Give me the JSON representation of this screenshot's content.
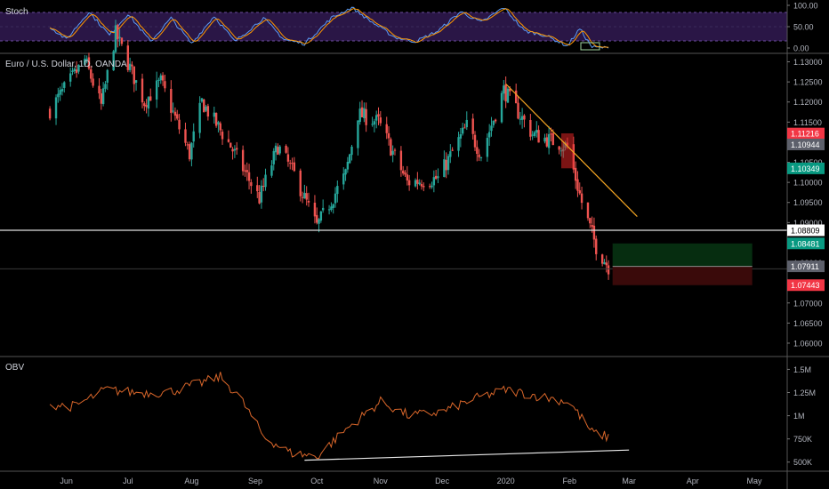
{
  "colors": {
    "background": "#000000",
    "up": "#26a69a",
    "down": "#ef5350",
    "stoch_band": "#2a1646",
    "stoch_k": "#5b9cf6",
    "stoch_d": "#ff9800",
    "obv_line": "#d9662a",
    "trendline": "#f5a623",
    "support_line": "#e0e0e0",
    "grid_text": "#b2b5be",
    "profit_zone": "#062d10",
    "loss_zone": "#3a0a0a"
  },
  "stoch": {
    "label": "Stoch",
    "ticks": [
      "100.00",
      "50.00",
      "0.00"
    ]
  },
  "price": {
    "title": "Euro / U.S. Dollar, 1D, OANDA",
    "ticks": [
      "1.13000",
      "1.12500",
      "1.12000",
      "1.11500",
      "1.11000",
      "1.10500",
      "1.10000",
      "1.09500",
      "1.09000",
      "1.08500",
      "1.08000",
      "1.07500",
      "1.07000",
      "1.06500",
      "1.06000"
    ],
    "tags": [
      {
        "value": "1.11216",
        "color": "#f23645",
        "text_color": "#ffffff"
      },
      {
        "value": "1.10944",
        "color": "#5d606b",
        "text_color": "#ffffff"
      },
      {
        "value": "1.10349",
        "color": "#089981",
        "text_color": "#ffffff"
      },
      {
        "value": "1.08809",
        "color": "#ffffff",
        "text_color": "#000000"
      },
      {
        "value": "1.08481",
        "color": "#089981",
        "text_color": "#ffffff"
      },
      {
        "value": "1.07911",
        "color": "#5d606b",
        "text_color": "#ffffff"
      },
      {
        "value": "1.07443",
        "color": "#f23645",
        "text_color": "#ffffff"
      }
    ]
  },
  "obv": {
    "label": "OBV",
    "ticks": [
      "1.5M",
      "1.25M",
      "1M",
      "750K",
      "500K"
    ]
  },
  "time_axis": {
    "labels": [
      "Jun",
      "Jul",
      "Aug",
      "Sep",
      "Oct",
      "Nov",
      "Dec",
      "2020",
      "Feb",
      "Mar",
      "Apr",
      "May"
    ]
  },
  "chart_data": {
    "type": "candlestick",
    "title": "Euro / U.S. Dollar, 1D, OANDA",
    "x_range": [
      "2019-05",
      "2020-05"
    ],
    "y_range": [
      1.058,
      1.131
    ],
    "close_anchors": [
      {
        "date": "2019-05-24",
        "close": 1.118
      },
      {
        "date": "2019-06-10",
        "close": 1.1305
      },
      {
        "date": "2019-06-18",
        "close": 1.119
      },
      {
        "date": "2019-06-25",
        "close": 1.137
      },
      {
        "date": "2019-07-09",
        "close": 1.12
      },
      {
        "date": "2019-07-17",
        "close": 1.125
      },
      {
        "date": "2019-07-31",
        "close": 1.107
      },
      {
        "date": "2019-08-06",
        "close": 1.12
      },
      {
        "date": "2019-08-20",
        "close": 1.109
      },
      {
        "date": "2019-09-03",
        "close": 1.096
      },
      {
        "date": "2019-09-12",
        "close": 1.109
      },
      {
        "date": "2019-09-20",
        "close": 1.102
      },
      {
        "date": "2019-10-01",
        "close": 1.089
      },
      {
        "date": "2019-10-15",
        "close": 1.102
      },
      {
        "date": "2019-10-21",
        "close": 1.117
      },
      {
        "date": "2019-10-31",
        "close": 1.115
      },
      {
        "date": "2019-11-14",
        "close": 1.1
      },
      {
        "date": "2019-11-29",
        "close": 1.101
      },
      {
        "date": "2019-12-13",
        "close": 1.114
      },
      {
        "date": "2019-12-20",
        "close": 1.107
      },
      {
        "date": "2019-12-31",
        "close": 1.123
      },
      {
        "date": "2020-01-14",
        "close": 1.112
      },
      {
        "date": "2020-01-31",
        "close": 1.109
      },
      {
        "date": "2020-02-07",
        "close": 1.095
      },
      {
        "date": "2020-02-14",
        "close": 1.084
      },
      {
        "date": "2020-02-20",
        "close": 1.079
      }
    ],
    "levels": [
      {
        "name": "support",
        "value": 1.08809
      },
      {
        "name": "entry",
        "value": 1.07911
      },
      {
        "name": "target",
        "value": 1.08481
      },
      {
        "name": "stop",
        "value": 1.07443
      }
    ],
    "trendline": {
      "from": {
        "date": "2020-01-01",
        "value": 1.1245
      },
      "to": {
        "date": "2020-03-05",
        "value": 1.0915
      }
    },
    "marked_zone": {
      "from": "2020-01-28",
      "to": "2020-02-03",
      "low": 1.1035,
      "high": 1.1122
    },
    "position_box": {
      "from": "2020-02-22",
      "to": "2020-04-30",
      "entry": 1.07911,
      "target": 1.08481,
      "stop": 1.07443
    },
    "stoch_anchors": [
      {
        "date": "2019-05-24",
        "value": 50
      },
      {
        "date": "2019-06-01",
        "value": 20
      },
      {
        "date": "2019-06-12",
        "value": 85
      },
      {
        "date": "2019-06-22",
        "value": 30
      },
      {
        "date": "2019-07-01",
        "value": 80
      },
      {
        "date": "2019-07-12",
        "value": 15
      },
      {
        "date": "2019-07-22",
        "value": 70
      },
      {
        "date": "2019-08-01",
        "value": 10
      },
      {
        "date": "2019-08-12",
        "value": 75
      },
      {
        "date": "2019-08-22",
        "value": 15
      },
      {
        "date": "2019-09-05",
        "value": 70
      },
      {
        "date": "2019-09-15",
        "value": 20
      },
      {
        "date": "2019-09-25",
        "value": 10
      },
      {
        "date": "2019-10-08",
        "value": 70
      },
      {
        "date": "2019-10-18",
        "value": 95
      },
      {
        "date": "2019-10-28",
        "value": 60
      },
      {
        "date": "2019-11-08",
        "value": 25
      },
      {
        "date": "2019-11-18",
        "value": 15
      },
      {
        "date": "2019-11-29",
        "value": 40
      },
      {
        "date": "2019-12-10",
        "value": 85
      },
      {
        "date": "2019-12-20",
        "value": 60
      },
      {
        "date": "2019-12-31",
        "value": 95
      },
      {
        "date": "2020-01-10",
        "value": 40
      },
      {
        "date": "2020-01-20",
        "value": 30
      },
      {
        "date": "2020-01-31",
        "value": 5
      },
      {
        "date": "2020-02-06",
        "value": 45
      },
      {
        "date": "2020-02-12",
        "value": 2
      },
      {
        "date": "2020-02-20",
        "value": 0
      }
    ],
    "obv_anchors": [
      {
        "date": "2019-05-24",
        "value": 1120000
      },
      {
        "date": "2019-06-05",
        "value": 1100000
      },
      {
        "date": "2019-06-20",
        "value": 1280000
      },
      {
        "date": "2019-07-05",
        "value": 1250000
      },
      {
        "date": "2019-07-20",
        "value": 1250000
      },
      {
        "date": "2019-08-05",
        "value": 1350000
      },
      {
        "date": "2019-08-15",
        "value": 1420000
      },
      {
        "date": "2019-08-25",
        "value": 1180000
      },
      {
        "date": "2019-09-05",
        "value": 780000
      },
      {
        "date": "2019-09-18",
        "value": 600000
      },
      {
        "date": "2019-10-01",
        "value": 560000
      },
      {
        "date": "2019-10-15",
        "value": 850000
      },
      {
        "date": "2019-11-01",
        "value": 1150000
      },
      {
        "date": "2019-11-15",
        "value": 1000000
      },
      {
        "date": "2019-12-01",
        "value": 1040000
      },
      {
        "date": "2019-12-15",
        "value": 1170000
      },
      {
        "date": "2020-01-01",
        "value": 1280000
      },
      {
        "date": "2020-01-15",
        "value": 1220000
      },
      {
        "date": "2020-02-01",
        "value": 1150000
      },
      {
        "date": "2020-02-12",
        "value": 820000
      },
      {
        "date": "2020-02-20",
        "value": 770000
      }
    ],
    "obv_trendline": {
      "from": {
        "date": "2019-09-25",
        "value": 520000
      },
      "to": {
        "date": "2020-03-01",
        "value": 630000
      }
    }
  }
}
